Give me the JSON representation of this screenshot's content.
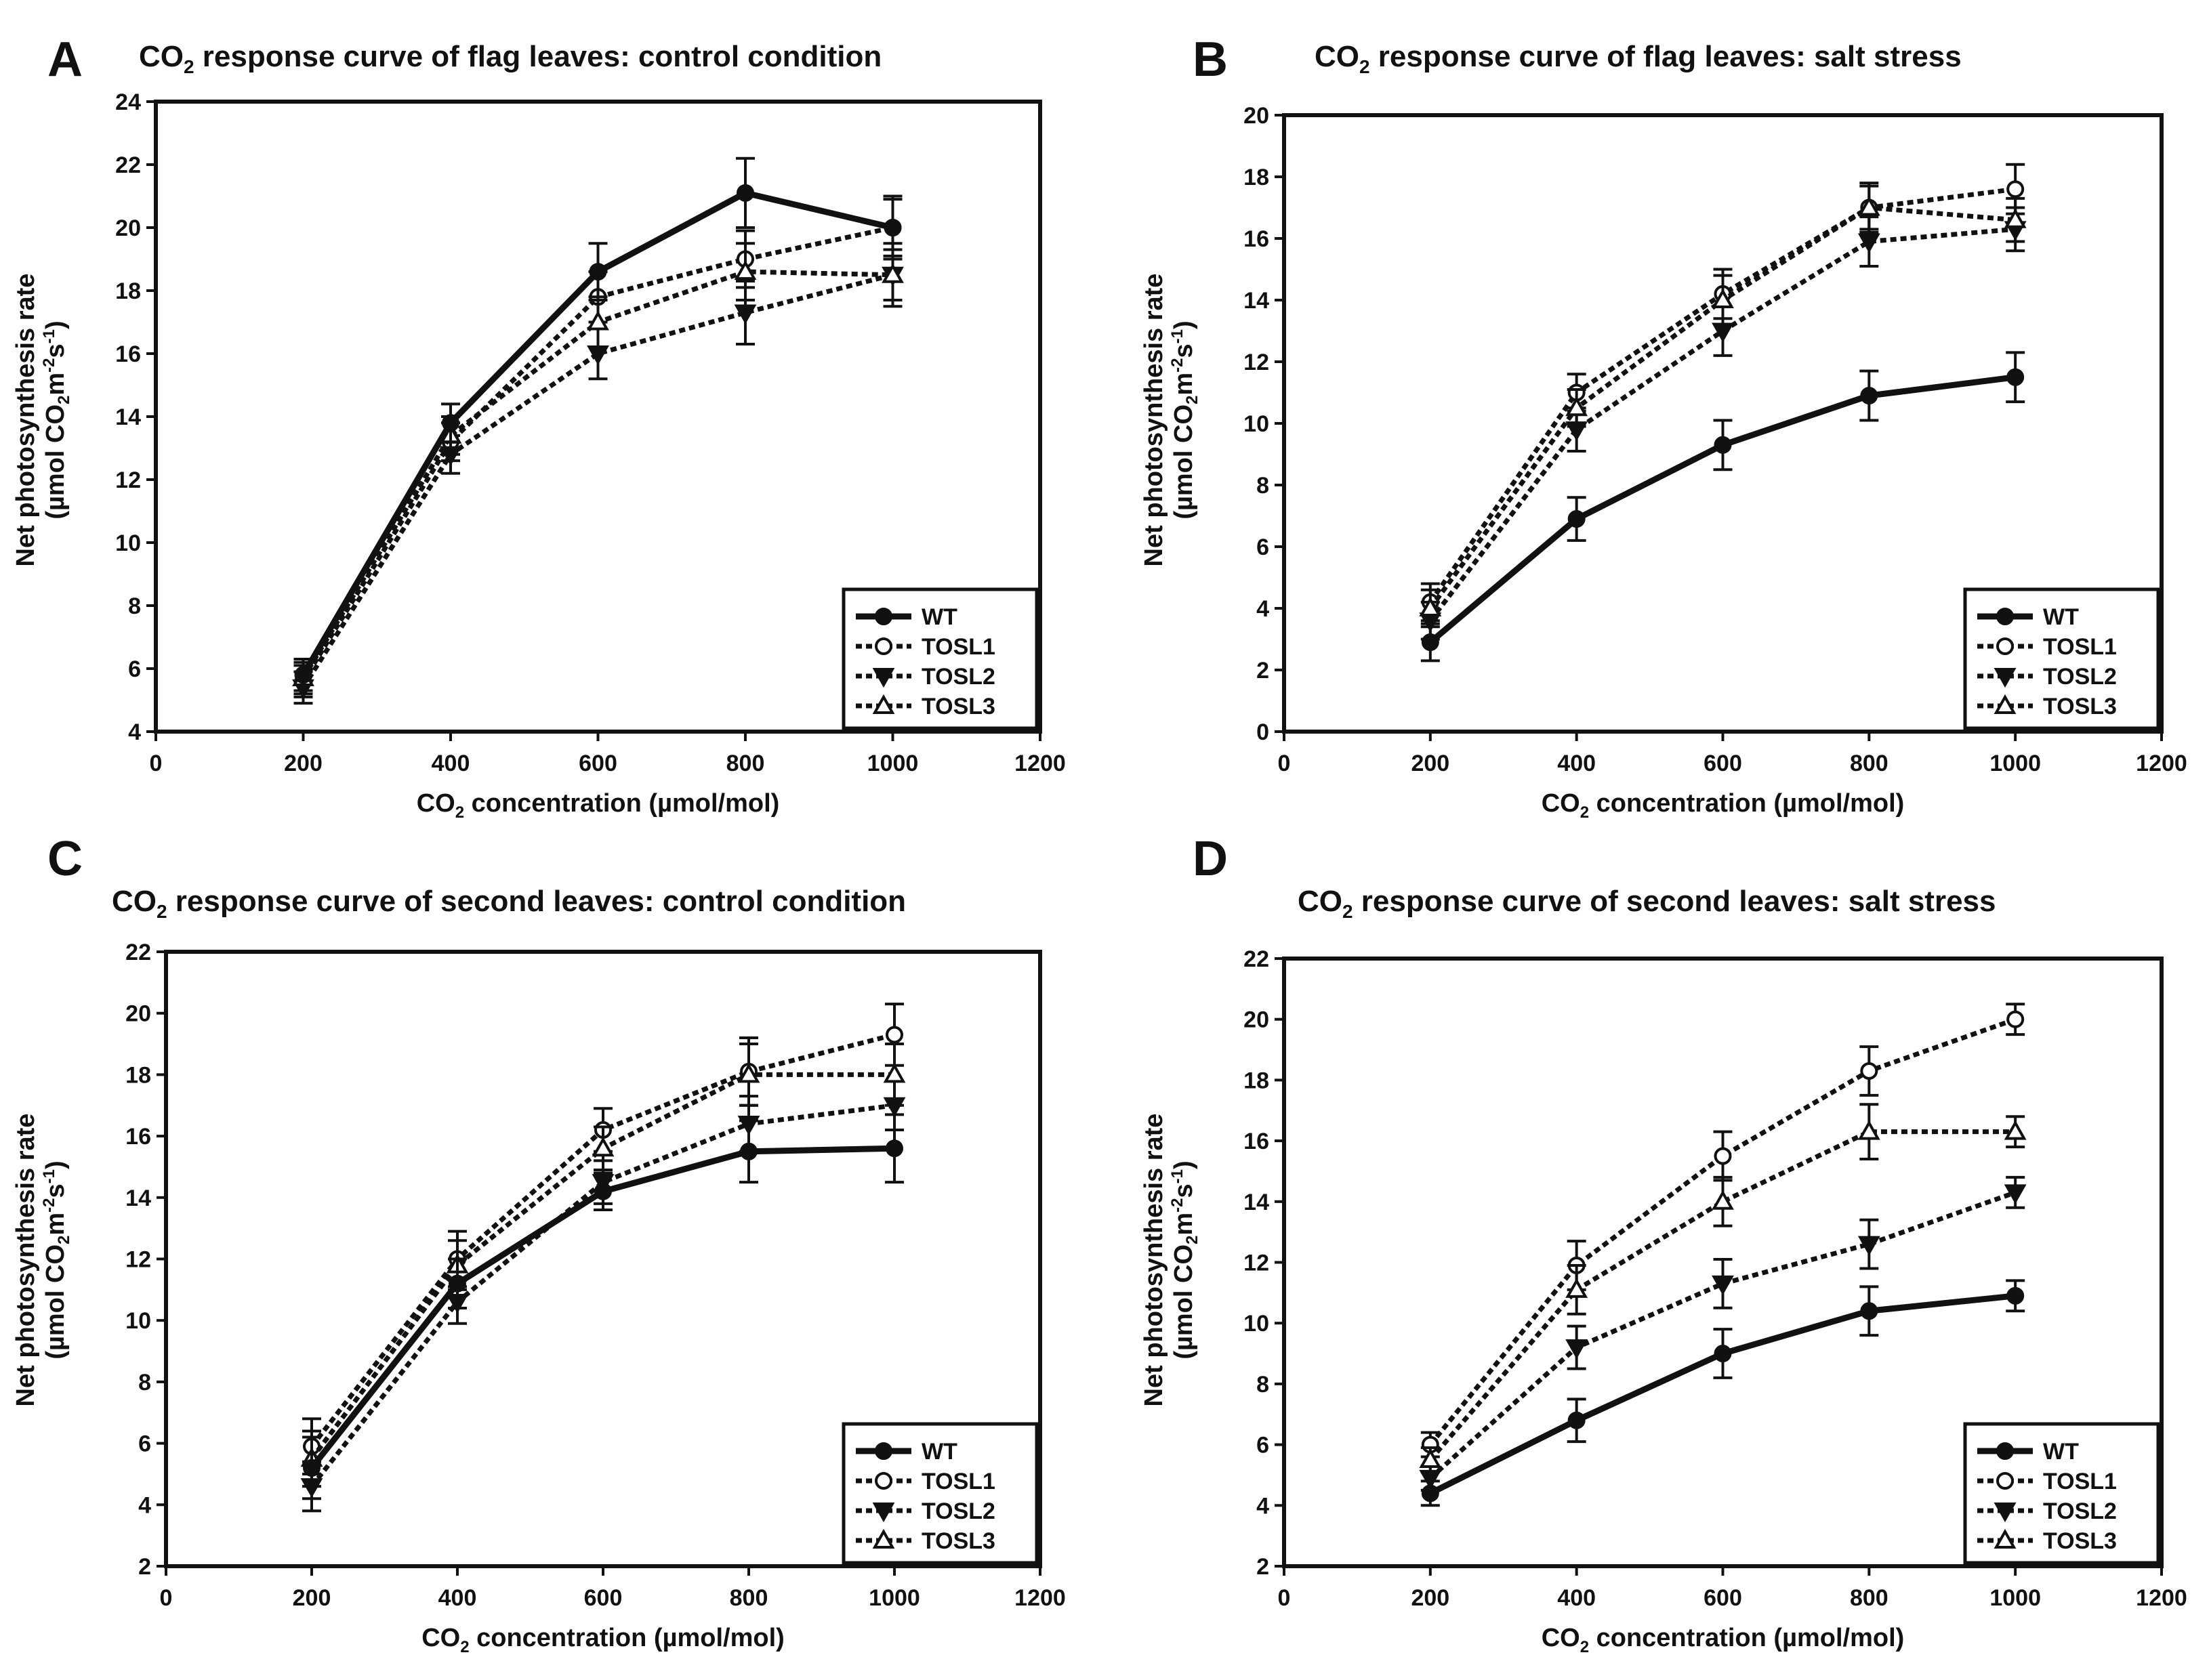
{
  "chart_data": [
    {
      "panel": "A",
      "type": "line",
      "title_prefix": "CO",
      "title_sub": "2",
      "title_rest": " response curve of flag leaves:  control condition",
      "xlabel_prefix": "CO",
      "xlabel_sub": "2",
      "xlabel_rest": " concentration (µmol/mol)",
      "ylabel_line1": "Net photosynthesis rate",
      "ylabel_line2_prefix": "(µmol CO",
      "ylabel_line2_sub1": "2",
      "ylabel_line2_mid": "m",
      "ylabel_line2_sup1": "-2",
      "ylabel_line2_mid2": "s",
      "ylabel_line2_sup2": "-1",
      "ylabel_line2_suffix": ")",
      "xlim": [
        0,
        1200
      ],
      "ylim": [
        4,
        24
      ],
      "xticks": [
        0,
        200,
        400,
        600,
        800,
        1000,
        1200
      ],
      "yticks": [
        4,
        6,
        8,
        10,
        12,
        14,
        16,
        18,
        20,
        22,
        24
      ],
      "x": [
        200,
        400,
        600,
        800,
        1000
      ],
      "series": [
        {
          "name": "WT",
          "values": [
            5.8,
            13.8,
            18.6,
            21.1,
            20.0
          ],
          "errors": [
            0.5,
            0.6,
            0.9,
            1.1,
            1.0
          ]
        },
        {
          "name": "TOSL1",
          "values": [
            5.6,
            13.2,
            17.8,
            19.0,
            20.0
          ],
          "errors": [
            0.5,
            0.6,
            0.8,
            0.9,
            0.9
          ]
        },
        {
          "name": "TOSL2",
          "values": [
            5.4,
            12.8,
            16.0,
            17.3,
            18.5
          ],
          "errors": [
            0.5,
            0.6,
            0.8,
            1.0,
            1.0
          ]
        },
        {
          "name": "TOSL3",
          "values": [
            5.7,
            13.4,
            17.0,
            18.6,
            18.5
          ],
          "errors": [
            0.5,
            0.6,
            0.8,
            0.9,
            0.8
          ]
        }
      ],
      "legend": "bottom-right"
    },
    {
      "panel": "B",
      "type": "line",
      "title_prefix": "CO",
      "title_sub": "2",
      "title_rest": " response curve of flag leaves: salt stress",
      "xlabel_prefix": "CO",
      "xlabel_sub": "2",
      "xlabel_rest": " concentration (µmol/mol)",
      "ylabel_line1": "Net photosynthesis rate",
      "ylabel_line2_prefix": "(µmol CO",
      "ylabel_line2_sub1": "2",
      "ylabel_line2_mid": "m",
      "ylabel_line2_sup1": "-2",
      "ylabel_line2_mid2": "s",
      "ylabel_line2_sup2": "-1",
      "ylabel_line2_suffix": ")",
      "xlim": [
        0,
        1200
      ],
      "ylim": [
        0,
        20
      ],
      "xticks": [
        0,
        200,
        400,
        600,
        800,
        1000,
        1200
      ],
      "yticks": [
        0,
        2,
        4,
        6,
        8,
        10,
        12,
        14,
        16,
        18,
        20
      ],
      "x": [
        200,
        400,
        600,
        800,
        1000
      ],
      "series": [
        {
          "name": "WT",
          "values": [
            2.9,
            6.9,
            9.3,
            10.9,
            11.5
          ],
          "errors": [
            0.6,
            0.7,
            0.8,
            0.8,
            0.8
          ]
        },
        {
          "name": "TOSL1",
          "values": [
            4.2,
            11.0,
            14.2,
            17.0,
            17.6
          ],
          "errors": [
            0.6,
            0.6,
            0.8,
            0.8,
            0.8
          ]
        },
        {
          "name": "TOSL2",
          "values": [
            3.6,
            9.8,
            13.0,
            15.9,
            16.3
          ],
          "errors": [
            0.6,
            0.7,
            0.8,
            0.8,
            0.7
          ]
        },
        {
          "name": "TOSL3",
          "values": [
            4.0,
            10.5,
            14.0,
            17.0,
            16.6
          ],
          "errors": [
            0.6,
            0.6,
            0.8,
            0.7,
            0.7
          ]
        }
      ],
      "legend": "bottom-right"
    },
    {
      "panel": "C",
      "type": "line",
      "title_prefix": "CO",
      "title_sub": "2",
      "title_rest": " response curve of second leaves: control condition",
      "xlabel_prefix": "CO",
      "xlabel_sub": "2",
      "xlabel_rest": " concentration (µmol/mol)",
      "ylabel_line1": "Net photosynthesis rate",
      "ylabel_line2_prefix": "(µmol CO",
      "ylabel_line2_sub1": "2",
      "ylabel_line2_mid": "m",
      "ylabel_line2_sup1": "-2",
      "ylabel_line2_mid2": "s",
      "ylabel_line2_sup2": "-1",
      "ylabel_line2_suffix": ")",
      "xlim": [
        0,
        1200
      ],
      "ylim": [
        2,
        22
      ],
      "xticks": [
        0,
        200,
        400,
        600,
        800,
        1000,
        1200
      ],
      "yticks": [
        2,
        4,
        6,
        8,
        10,
        12,
        14,
        16,
        18,
        20,
        22
      ],
      "x": [
        200,
        400,
        600,
        800,
        1000
      ],
      "series": [
        {
          "name": "WT",
          "values": [
            5.2,
            11.2,
            14.2,
            15.5,
            15.6
          ],
          "errors": [
            1.0,
            0.8,
            0.6,
            1.0,
            1.1
          ]
        },
        {
          "name": "TOSL1",
          "values": [
            5.9,
            12.0,
            16.2,
            18.1,
            19.3
          ],
          "errors": [
            0.9,
            0.9,
            0.7,
            1.1,
            1.0
          ]
        },
        {
          "name": "TOSL2",
          "values": [
            4.6,
            10.6,
            14.5,
            16.4,
            17.0
          ],
          "errors": [
            0.8,
            0.7,
            0.7,
            0.9,
            0.8
          ]
        },
        {
          "name": "TOSL3",
          "values": [
            5.5,
            11.8,
            15.6,
            18.0,
            18.0
          ],
          "errors": [
            0.9,
            0.8,
            0.7,
            1.0,
            1.0
          ]
        }
      ],
      "legend": "bottom-right"
    },
    {
      "panel": "D",
      "type": "line",
      "title_prefix": "CO",
      "title_sub": "2",
      "title_rest": " response curve of second leaves: salt stress",
      "xlabel_prefix": "CO",
      "xlabel_sub": "2",
      "xlabel_rest": " concentration (µmol/mol)",
      "ylabel_line1": "Net photosynthesis rate",
      "ylabel_line2_prefix": "(µmol CO",
      "ylabel_line2_sub1": "2",
      "ylabel_line2_mid": "m",
      "ylabel_line2_sup1": "-2",
      "ylabel_line2_mid2": "s",
      "ylabel_line2_sup2": "-1",
      "ylabel_line2_suffix": ")",
      "xlim": [
        0,
        1200
      ],
      "ylim": [
        2,
        22
      ],
      "xticks": [
        0,
        200,
        400,
        600,
        800,
        1000,
        1200
      ],
      "yticks": [
        2,
        4,
        6,
        8,
        10,
        12,
        14,
        16,
        18,
        20,
        22
      ],
      "x": [
        200,
        400,
        600,
        800,
        1000
      ],
      "series": [
        {
          "name": "WT",
          "values": [
            4.4,
            6.8,
            9.0,
            10.4,
            10.9
          ],
          "errors": [
            0.4,
            0.7,
            0.8,
            0.8,
            0.5
          ]
        },
        {
          "name": "TOSL1",
          "values": [
            6.0,
            11.9,
            15.5,
            18.3,
            20.0
          ],
          "errors": [
            0.4,
            0.8,
            0.8,
            0.8,
            0.5
          ]
        },
        {
          "name": "TOSL2",
          "values": [
            4.9,
            9.2,
            11.3,
            12.6,
            14.3
          ],
          "errors": [
            0.4,
            0.7,
            0.8,
            0.8,
            0.5
          ]
        },
        {
          "name": "TOSL3",
          "values": [
            5.5,
            11.1,
            14.0,
            16.3,
            16.3
          ],
          "errors": [
            0.4,
            0.8,
            0.8,
            0.9,
            0.5
          ]
        }
      ],
      "legend": "bottom-right"
    }
  ],
  "style": {
    "line_color": "#111111",
    "marker_fill_filled": "#111111",
    "marker_fill_open": "#ffffff",
    "background": "#ffffff"
  }
}
